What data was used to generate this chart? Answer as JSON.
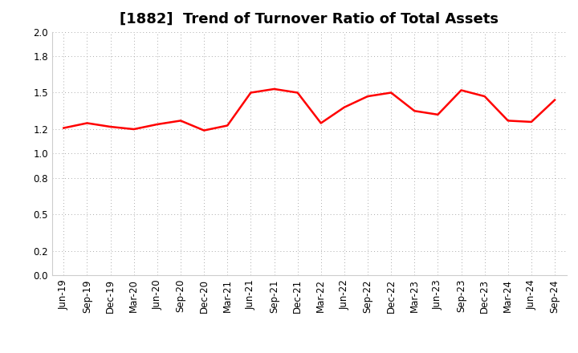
{
  "title": "[1882]  Trend of Turnover Ratio of Total Assets",
  "x_labels": [
    "Jun-19",
    "Sep-19",
    "Dec-19",
    "Mar-20",
    "Jun-20",
    "Sep-20",
    "Dec-20",
    "Mar-21",
    "Jun-21",
    "Sep-21",
    "Dec-21",
    "Mar-22",
    "Jun-22",
    "Sep-22",
    "Dec-22",
    "Mar-23",
    "Jun-23",
    "Sep-23",
    "Dec-23",
    "Mar-24",
    "Jun-24",
    "Sep-24"
  ],
  "values": [
    1.21,
    1.25,
    1.22,
    1.2,
    1.24,
    1.27,
    1.19,
    1.23,
    1.5,
    1.53,
    1.5,
    1.25,
    1.38,
    1.47,
    1.5,
    1.35,
    1.32,
    1.52,
    1.47,
    1.27,
    1.26,
    1.44
  ],
  "line_color": "#FF0000",
  "line_width": 1.8,
  "ylim": [
    0.0,
    2.0
  ],
  "yticks": [
    0.0,
    0.2,
    0.5,
    0.8,
    1.0,
    1.2,
    1.5,
    1.8,
    2.0
  ],
  "background_color": "#ffffff",
  "grid_color": "#aaaaaa",
  "title_fontsize": 13,
  "tick_fontsize": 8.5
}
